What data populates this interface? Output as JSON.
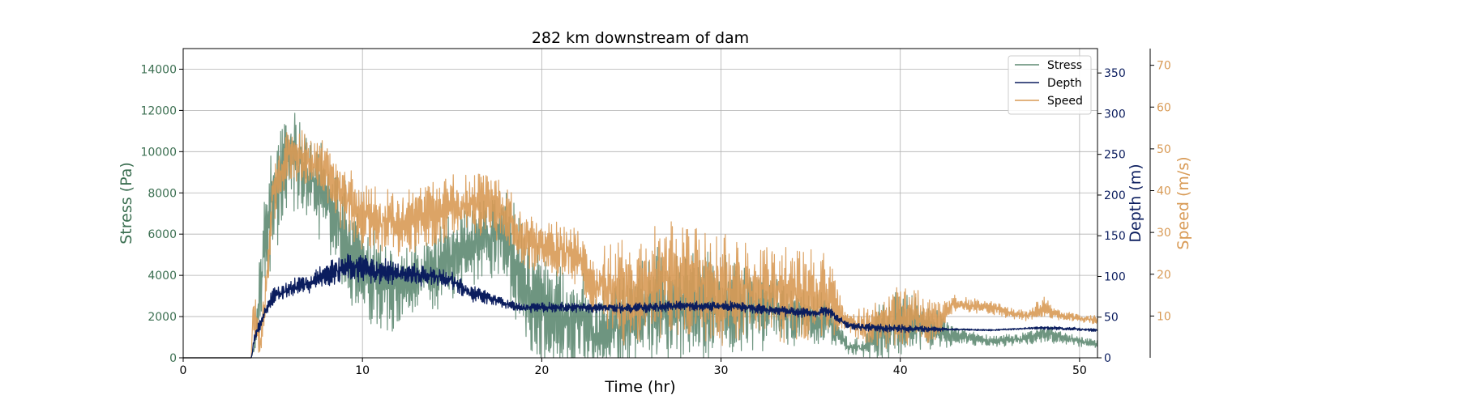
{
  "chart_data": {
    "type": "line",
    "title": "282 km downstream of dam",
    "xlabel": "Time (hr)",
    "xlim": [
      0,
      51
    ],
    "xticks": [
      0,
      10,
      20,
      30,
      40,
      50
    ],
    "grid": true,
    "legend": {
      "placement": "top-right",
      "entries": [
        "Stress",
        "Depth",
        "Speed"
      ]
    },
    "axes": {
      "stress": {
        "label": "Stress (Pa)",
        "side": "left",
        "color": "#2f6b4a",
        "ylim": [
          0,
          15000
        ],
        "ticks": [
          0,
          2000,
          4000,
          6000,
          8000,
          10000,
          12000,
          14000
        ]
      },
      "depth": {
        "label": "Depth (m)",
        "side": "right",
        "color": "#0b1d5e",
        "ylim": [
          0,
          380
        ],
        "ticks": [
          0,
          50,
          100,
          150,
          200,
          250,
          300,
          350
        ]
      },
      "speed": {
        "label": "Speed (m/s)",
        "side": "right-outer",
        "color": "#d89a55",
        "ylim": [
          0,
          74
        ],
        "ticks": [
          10,
          20,
          30,
          40,
          50,
          60,
          70
        ]
      }
    },
    "series": [
      {
        "name": "Stress",
        "axis": "stress",
        "color": "#5e8a72",
        "seed": 11,
        "envelope": [
          [
            0,
            0,
            0
          ],
          [
            3.8,
            0,
            0
          ],
          [
            4.0,
            800,
            600
          ],
          [
            4.5,
            5200,
            2400
          ],
          [
            5,
            7600,
            2600
          ],
          [
            6,
            9800,
            2400
          ],
          [
            7,
            8800,
            2200
          ],
          [
            8,
            7600,
            2400
          ],
          [
            9,
            5800,
            2600
          ],
          [
            10,
            4200,
            2400
          ],
          [
            11,
            3600,
            2200
          ],
          [
            12,
            3100,
            1800
          ],
          [
            13,
            3800,
            1800
          ],
          [
            14,
            4200,
            1900
          ],
          [
            15,
            4800,
            2000
          ],
          [
            16,
            5400,
            2000
          ],
          [
            17,
            6000,
            2000
          ],
          [
            18,
            5800,
            2200
          ],
          [
            19,
            3600,
            3000
          ],
          [
            20,
            2200,
            2600
          ],
          [
            22,
            1800,
            2600
          ],
          [
            23,
            1200,
            1600
          ],
          [
            25,
            1800,
            2400
          ],
          [
            26,
            2600,
            2600
          ],
          [
            28,
            2500,
            2600
          ],
          [
            30,
            2600,
            2600
          ],
          [
            32,
            2400,
            2000
          ],
          [
            34,
            2100,
            1500
          ],
          [
            36,
            1800,
            1100
          ],
          [
            37,
            600,
            400
          ],
          [
            38,
            500,
            500
          ],
          [
            39,
            1300,
            1500
          ],
          [
            40,
            1700,
            1500
          ],
          [
            42,
            1300,
            1000
          ],
          [
            43,
            1100,
            400
          ],
          [
            45,
            800,
            250
          ],
          [
            47,
            900,
            300
          ],
          [
            48,
            1200,
            400
          ],
          [
            50,
            800,
            250
          ],
          [
            51,
            650,
            200
          ]
        ]
      },
      {
        "name": "Depth",
        "axis": "depth",
        "color": "#0b1d5e",
        "seed": 23,
        "envelope": [
          [
            0,
            0,
            0
          ],
          [
            3.8,
            0,
            0
          ],
          [
            4.0,
            25,
            8
          ],
          [
            4.5,
            55,
            8
          ],
          [
            5,
            75,
            10
          ],
          [
            6,
            85,
            10
          ],
          [
            7,
            92,
            12
          ],
          [
            8,
            102,
            14
          ],
          [
            9,
            112,
            18
          ],
          [
            10,
            110,
            16
          ],
          [
            12,
            103,
            14
          ],
          [
            14,
            100,
            12
          ],
          [
            15,
            95,
            12
          ],
          [
            16,
            80,
            10
          ],
          [
            17,
            74,
            8
          ],
          [
            18,
            66,
            6
          ],
          [
            19,
            61,
            5
          ],
          [
            20,
            62,
            6
          ],
          [
            22,
            62,
            6
          ],
          [
            25,
            61,
            6
          ],
          [
            28,
            64,
            6
          ],
          [
            31,
            63,
            6
          ],
          [
            33,
            58,
            6
          ],
          [
            35,
            55,
            6
          ],
          [
            36,
            57,
            6
          ],
          [
            37,
            41,
            4
          ],
          [
            38,
            37,
            5
          ],
          [
            40,
            36,
            5
          ],
          [
            42,
            35,
            3
          ],
          [
            43,
            35,
            1
          ],
          [
            45,
            34,
            1
          ],
          [
            47,
            36,
            1
          ],
          [
            48,
            37,
            2
          ],
          [
            50,
            35,
            2
          ],
          [
            51,
            34,
            2
          ]
        ]
      },
      {
        "name": "Speed",
        "axis": "speed",
        "color": "#d89a55",
        "seed": 37,
        "envelope": [
          [
            0,
            0,
            0
          ],
          [
            3.8,
            0,
            0
          ],
          [
            3.9,
            12,
            6
          ],
          [
            4.3,
            3,
            4
          ],
          [
            4.6,
            14,
            6
          ],
          [
            5,
            40,
            8
          ],
          [
            6,
            49,
            7
          ],
          [
            7,
            47,
            6
          ],
          [
            8,
            44,
            7
          ],
          [
            9,
            38,
            8
          ],
          [
            10,
            34,
            8
          ],
          [
            12,
            32,
            7
          ],
          [
            14,
            34,
            8
          ],
          [
            15,
            36,
            8
          ],
          [
            16,
            37,
            7
          ],
          [
            17,
            37,
            7
          ],
          [
            18,
            34,
            7
          ],
          [
            19,
            28,
            6
          ],
          [
            20,
            26,
            6
          ],
          [
            22,
            25,
            7
          ],
          [
            23,
            17,
            10
          ],
          [
            25,
            15,
            12
          ],
          [
            27,
            19,
            13
          ],
          [
            30,
            17,
            13
          ],
          [
            32,
            17,
            12
          ],
          [
            34,
            15,
            11
          ],
          [
            36,
            14,
            10
          ],
          [
            37,
            9,
            2
          ],
          [
            38,
            7,
            5
          ],
          [
            40,
            10,
            7
          ],
          [
            42,
            9,
            6
          ],
          [
            43,
            13,
            2
          ],
          [
            45,
            12,
            1.5
          ],
          [
            47,
            10,
            1.2
          ],
          [
            48,
            12,
            2.5
          ],
          [
            49,
            10,
            1
          ],
          [
            51,
            9,
            1
          ]
        ]
      }
    ]
  }
}
